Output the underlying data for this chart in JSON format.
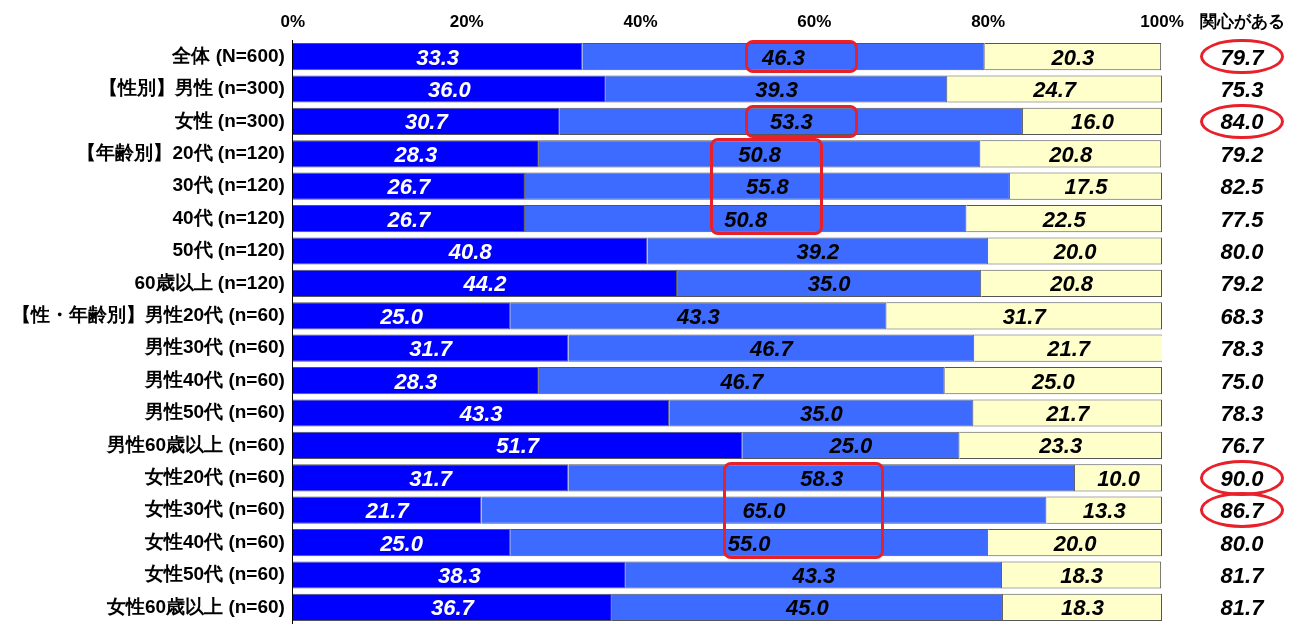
{
  "chart_data": {
    "type": "bar",
    "orientation": "horizontal",
    "stacked": true,
    "categories": [
      "全体 (N=600)",
      "【性別】男性 (n=300)",
      "女性 (n=300)",
      "【年齢別】20代 (n=120)",
      "30代 (n=120)",
      "40代 (n=120)",
      "50代 (n=120)",
      "60歳以上 (n=120)",
      "【性・年齢別】男性20代 (n=60)",
      "男性30代 (n=60)",
      "男性40代 (n=60)",
      "男性50代 (n=60)",
      "男性60歳以上 (n=60)",
      "女性20代 (n=60)",
      "女性30代 (n=60)",
      "女性40代 (n=60)",
      "女性50代 (n=60)",
      "女性60歳以上 (n=60)"
    ],
    "series": [
      {
        "color": "#0000ff",
        "values": [
          33.3,
          36.0,
          30.7,
          28.3,
          26.7,
          26.7,
          40.8,
          44.2,
          25.0,
          31.7,
          28.3,
          43.3,
          51.7,
          31.7,
          21.7,
          25.0,
          38.3,
          36.7
        ],
        "value_labels": [
          "33.3",
          "36.0",
          "30.7",
          "28.3",
          "26.7",
          "26.7",
          "40.8",
          "44.2",
          "25.0",
          "31.7",
          "28.3",
          "43.3",
          "51.7",
          "31.7",
          "21.7",
          "25.0",
          "38.3",
          "36.7"
        ]
      },
      {
        "color": "#3d6bff",
        "values": [
          46.3,
          39.3,
          53.3,
          50.8,
          55.8,
          50.8,
          39.2,
          35.0,
          43.3,
          46.7,
          46.7,
          35.0,
          25.0,
          58.3,
          65.0,
          55.0,
          43.3,
          45.0
        ],
        "value_labels": [
          "46.3",
          "39.3",
          "53.3",
          "50.8",
          "55.8",
          "50.8",
          "39.2",
          "35.0",
          "43.3",
          "46.7",
          "46.7",
          "35.0",
          "25.0",
          "58.3",
          "65.0",
          "55.0",
          "43.3",
          "45.0"
        ]
      },
      {
        "color": "#ffffcc",
        "values": [
          20.3,
          24.7,
          16.0,
          20.8,
          17.5,
          22.5,
          20.0,
          20.8,
          31.7,
          21.7,
          25.0,
          21.7,
          23.3,
          10.0,
          13.3,
          20.0,
          18.3,
          18.3
        ],
        "value_labels": [
          "20.3",
          "24.7",
          "16.0",
          "20.8",
          "17.5",
          "22.5",
          "20.0",
          "20.8",
          "31.7",
          "21.7",
          "25.0",
          "21.7",
          "23.3",
          "10.0",
          "13.3",
          "20.0",
          "18.3",
          "18.3"
        ]
      }
    ],
    "annotations": [
      "関心がある",
      "79.7",
      "75.3",
      "84.0",
      "79.2",
      "82.5",
      "77.5",
      "80.0",
      "79.2",
      "68.3",
      "78.3",
      "75.0",
      "78.3",
      "76.7",
      "90.0",
      "86.7",
      "80.0",
      "81.7",
      "81.7"
    ],
    "xlim": [
      0,
      100
    ],
    "xticks": [
      {
        "value": 0,
        "label": "0%"
      },
      {
        "value": 20,
        "label": "20%"
      },
      {
        "value": 40,
        "label": "40%"
      },
      {
        "value": 60,
        "label": "60%"
      },
      {
        "value": 80,
        "label": "80%"
      },
      {
        "value": 100,
        "label": "100%"
      }
    ],
    "grid": false,
    "legend": false
  }
}
